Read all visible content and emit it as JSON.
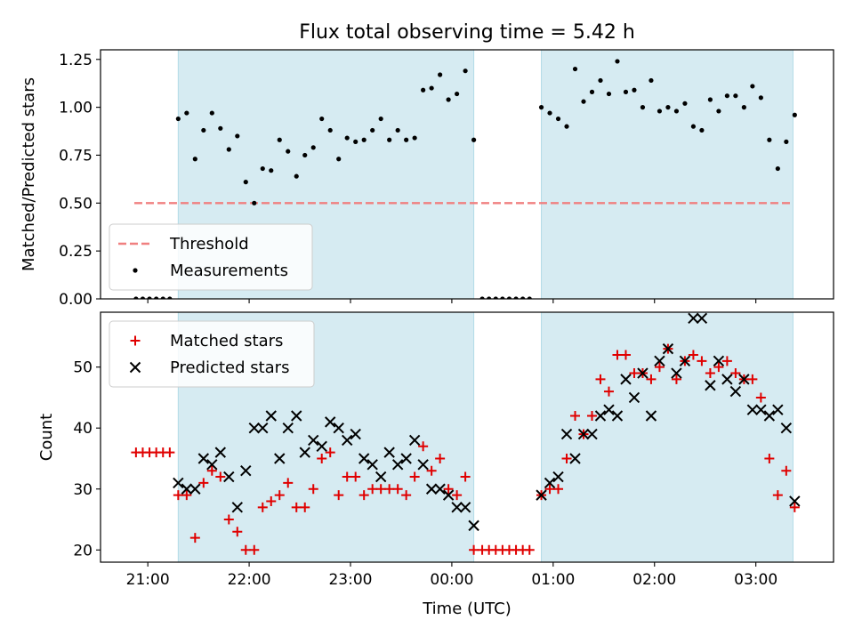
{
  "title": "Flux total observing time = 5.42 h",
  "colors": {
    "shade": "#add8e6",
    "threshold": "#f08080",
    "measurement": "#000000",
    "matched": "#e00000",
    "predicted": "#000000"
  },
  "chart_data": [
    {
      "type": "scatter",
      "panel": "top",
      "title": "Flux total observing time = 5.42 h",
      "xlabel": "",
      "ylabel": "Matched/Predicted stars",
      "xlim": [
        "20:32",
        "03:46"
      ],
      "ylim": [
        0,
        1.3
      ],
      "yticks": [
        "0.00",
        "0.25",
        "0.50",
        "0.75",
        "1.00",
        "1.25"
      ],
      "legend_position": "lower-left",
      "shaded_intervals": [
        [
          "21:18",
          "00:13"
        ],
        [
          "00:53",
          "03:22"
        ]
      ],
      "threshold": {
        "name": "Threshold",
        "y": 0.5,
        "x_range": [
          "20:52",
          "03:22"
        ]
      },
      "series": [
        {
          "name": "Measurements",
          "marker": "dot",
          "points": [
            [
              "20:53",
              0.0
            ],
            [
              "20:57",
              0.0
            ],
            [
              "21:01",
              0.0
            ],
            [
              "21:05",
              0.0
            ],
            [
              "21:09",
              0.0
            ],
            [
              "21:13",
              0.0
            ],
            [
              "21:18",
              0.94
            ],
            [
              "21:23",
              0.97
            ],
            [
              "21:28",
              0.73
            ],
            [
              "21:33",
              0.88
            ],
            [
              "21:38",
              0.97
            ],
            [
              "21:43",
              0.89
            ],
            [
              "21:48",
              0.78
            ],
            [
              "21:53",
              0.85
            ],
            [
              "21:58",
              0.61
            ],
            [
              "22:03",
              0.5
            ],
            [
              "22:08",
              0.68
            ],
            [
              "22:13",
              0.67
            ],
            [
              "22:18",
              0.83
            ],
            [
              "22:23",
              0.77
            ],
            [
              "22:28",
              0.64
            ],
            [
              "22:33",
              0.75
            ],
            [
              "22:38",
              0.79
            ],
            [
              "22:43",
              0.94
            ],
            [
              "22:48",
              0.88
            ],
            [
              "22:53",
              0.73
            ],
            [
              "22:58",
              0.84
            ],
            [
              "23:03",
              0.82
            ],
            [
              "23:08",
              0.83
            ],
            [
              "23:13",
              0.88
            ],
            [
              "23:18",
              0.94
            ],
            [
              "23:23",
              0.83
            ],
            [
              "23:28",
              0.88
            ],
            [
              "23:33",
              0.83
            ],
            [
              "23:38",
              0.84
            ],
            [
              "23:43",
              1.09
            ],
            [
              "23:48",
              1.1
            ],
            [
              "23:53",
              1.17
            ],
            [
              "23:58",
              1.04
            ],
            [
              "00:03",
              1.07
            ],
            [
              "00:08",
              1.19
            ],
            [
              "00:13",
              0.83
            ],
            [
              "00:18",
              0.0
            ],
            [
              "00:22",
              0.0
            ],
            [
              "00:26",
              0.0
            ],
            [
              "00:30",
              0.0
            ],
            [
              "00:34",
              0.0
            ],
            [
              "00:38",
              0.0
            ],
            [
              "00:42",
              0.0
            ],
            [
              "00:46",
              0.0
            ],
            [
              "00:53",
              1.0
            ],
            [
              "00:58",
              0.97
            ],
            [
              "01:03",
              0.94
            ],
            [
              "01:08",
              0.9
            ],
            [
              "01:13",
              1.2
            ],
            [
              "01:18",
              1.03
            ],
            [
              "01:23",
              1.08
            ],
            [
              "01:28",
              1.14
            ],
            [
              "01:33",
              1.07
            ],
            [
              "01:38",
              1.24
            ],
            [
              "01:43",
              1.08
            ],
            [
              "01:48",
              1.09
            ],
            [
              "01:53",
              1.0
            ],
            [
              "01:58",
              1.14
            ],
            [
              "02:03",
              0.98
            ],
            [
              "02:08",
              1.0
            ],
            [
              "02:13",
              0.98
            ],
            [
              "02:18",
              1.02
            ],
            [
              "02:23",
              0.9
            ],
            [
              "02:28",
              0.88
            ],
            [
              "02:33",
              1.04
            ],
            [
              "02:38",
              0.98
            ],
            [
              "02:43",
              1.06
            ],
            [
              "02:48",
              1.06
            ],
            [
              "02:53",
              1.0
            ],
            [
              "02:58",
              1.11
            ],
            [
              "03:03",
              1.05
            ],
            [
              "03:08",
              0.83
            ],
            [
              "03:13",
              0.68
            ],
            [
              "03:18",
              0.82
            ],
            [
              "03:23",
              0.96
            ]
          ]
        }
      ]
    },
    {
      "type": "scatter",
      "panel": "bottom",
      "xlabel": "Time (UTC)",
      "ylabel": "Count",
      "xlim": [
        "20:32",
        "03:46"
      ],
      "ylim": [
        18,
        59
      ],
      "xticks": [
        "21:00",
        "22:00",
        "23:00",
        "00:00",
        "01:00",
        "02:00",
        "03:00"
      ],
      "yticks": [
        "20",
        "30",
        "40",
        "50"
      ],
      "legend_position": "upper-left",
      "shaded_intervals": [
        [
          "21:18",
          "00:13"
        ],
        [
          "00:53",
          "03:22"
        ]
      ],
      "series": [
        {
          "name": "Matched stars",
          "marker": "plus",
          "points": [
            [
              "20:53",
              36
            ],
            [
              "20:57",
              36
            ],
            [
              "21:01",
              36
            ],
            [
              "21:05",
              36
            ],
            [
              "21:09",
              36
            ],
            [
              "21:13",
              36
            ],
            [
              "21:18",
              29
            ],
            [
              "21:23",
              29
            ],
            [
              "21:28",
              22
            ],
            [
              "21:33",
              31
            ],
            [
              "21:38",
              33
            ],
            [
              "21:43",
              32
            ],
            [
              "21:48",
              25
            ],
            [
              "21:53",
              23
            ],
            [
              "21:58",
              20
            ],
            [
              "22:03",
              20
            ],
            [
              "22:08",
              27
            ],
            [
              "22:13",
              28
            ],
            [
              "22:18",
              29
            ],
            [
              "22:23",
              31
            ],
            [
              "22:28",
              27
            ],
            [
              "22:33",
              27
            ],
            [
              "22:38",
              30
            ],
            [
              "22:43",
              35
            ],
            [
              "22:48",
              36
            ],
            [
              "22:53",
              29
            ],
            [
              "22:58",
              32
            ],
            [
              "23:03",
              32
            ],
            [
              "23:08",
              29
            ],
            [
              "23:13",
              30
            ],
            [
              "23:18",
              30
            ],
            [
              "23:23",
              30
            ],
            [
              "23:28",
              30
            ],
            [
              "23:33",
              29
            ],
            [
              "23:38",
              32
            ],
            [
              "23:43",
              37
            ],
            [
              "23:48",
              33
            ],
            [
              "23:53",
              35
            ],
            [
              "23:58",
              30
            ],
            [
              "00:03",
              29
            ],
            [
              "00:08",
              32
            ],
            [
              "00:13",
              20
            ],
            [
              "00:18",
              20
            ],
            [
              "00:22",
              20
            ],
            [
              "00:26",
              20
            ],
            [
              "00:30",
              20
            ],
            [
              "00:34",
              20
            ],
            [
              "00:38",
              20
            ],
            [
              "00:42",
              20
            ],
            [
              "00:46",
              20
            ],
            [
              "00:53",
              29
            ],
            [
              "00:58",
              30
            ],
            [
              "01:03",
              30
            ],
            [
              "01:08",
              35
            ],
            [
              "01:13",
              42
            ],
            [
              "01:18",
              39
            ],
            [
              "01:23",
              42
            ],
            [
              "01:28",
              48
            ],
            [
              "01:33",
              46
            ],
            [
              "01:38",
              52
            ],
            [
              "01:43",
              52
            ],
            [
              "01:48",
              49
            ],
            [
              "01:53",
              49
            ],
            [
              "01:58",
              48
            ],
            [
              "02:03",
              50
            ],
            [
              "02:08",
              53
            ],
            [
              "02:13",
              48
            ],
            [
              "02:18",
              51
            ],
            [
              "02:23",
              52
            ],
            [
              "02:28",
              51
            ],
            [
              "02:33",
              49
            ],
            [
              "02:38",
              50
            ],
            [
              "02:43",
              51
            ],
            [
              "02:48",
              49
            ],
            [
              "02:53",
              48
            ],
            [
              "02:58",
              48
            ],
            [
              "03:03",
              45
            ],
            [
              "03:08",
              35
            ],
            [
              "03:13",
              29
            ],
            [
              "03:18",
              33
            ],
            [
              "03:23",
              27
            ]
          ]
        },
        {
          "name": "Predicted stars",
          "marker": "x",
          "points": [
            [
              "21:18",
              31
            ],
            [
              "21:23",
              30
            ],
            [
              "21:28",
              30
            ],
            [
              "21:33",
              35
            ],
            [
              "21:38",
              34
            ],
            [
              "21:43",
              36
            ],
            [
              "21:48",
              32
            ],
            [
              "21:53",
              27
            ],
            [
              "21:58",
              33
            ],
            [
              "22:03",
              40
            ],
            [
              "22:08",
              40
            ],
            [
              "22:13",
              42
            ],
            [
              "22:18",
              35
            ],
            [
              "22:23",
              40
            ],
            [
              "22:28",
              42
            ],
            [
              "22:33",
              36
            ],
            [
              "22:38",
              38
            ],
            [
              "22:43",
              37
            ],
            [
              "22:48",
              41
            ],
            [
              "22:53",
              40
            ],
            [
              "22:58",
              38
            ],
            [
              "23:03",
              39
            ],
            [
              "23:08",
              35
            ],
            [
              "23:13",
              34
            ],
            [
              "23:18",
              32
            ],
            [
              "23:23",
              36
            ],
            [
              "23:28",
              34
            ],
            [
              "23:33",
              35
            ],
            [
              "23:38",
              38
            ],
            [
              "23:43",
              34
            ],
            [
              "23:48",
              30
            ],
            [
              "23:53",
              30
            ],
            [
              "23:58",
              29
            ],
            [
              "00:03",
              27
            ],
            [
              "00:08",
              27
            ],
            [
              "00:13",
              24
            ],
            [
              "00:53",
              29
            ],
            [
              "00:58",
              31
            ],
            [
              "01:03",
              32
            ],
            [
              "01:08",
              39
            ],
            [
              "01:13",
              35
            ],
            [
              "01:18",
              39
            ],
            [
              "01:23",
              39
            ],
            [
              "01:28",
              42
            ],
            [
              "01:33",
              43
            ],
            [
              "01:38",
              42
            ],
            [
              "01:43",
              48
            ],
            [
              "01:48",
              45
            ],
            [
              "01:53",
              49
            ],
            [
              "01:58",
              42
            ],
            [
              "02:03",
              51
            ],
            [
              "02:08",
              53
            ],
            [
              "02:13",
              49
            ],
            [
              "02:18",
              51
            ],
            [
              "02:23",
              58
            ],
            [
              "02:28",
              58
            ],
            [
              "02:33",
              47
            ],
            [
              "02:38",
              51
            ],
            [
              "02:43",
              48
            ],
            [
              "02:48",
              46
            ],
            [
              "02:53",
              48
            ],
            [
              "02:58",
              43
            ],
            [
              "03:03",
              43
            ],
            [
              "03:08",
              42
            ],
            [
              "03:13",
              43
            ],
            [
              "03:18",
              40
            ],
            [
              "03:23",
              28
            ]
          ]
        }
      ]
    }
  ]
}
